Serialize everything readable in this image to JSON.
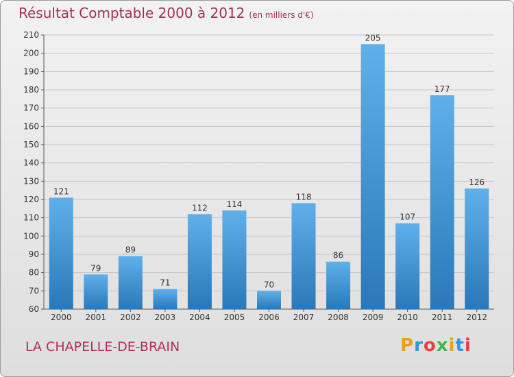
{
  "header": {
    "title": "Résultat Comptable 2000 à 2012",
    "unit": "(en milliers d'€)"
  },
  "footer": {
    "commune": "LA CHAPELLE-DE-BRAIN"
  },
  "logo": {
    "letters": [
      "P",
      "r",
      "o",
      "x",
      "i",
      "t",
      "i"
    ],
    "colors": [
      "#e8a020",
      "#2a9ad8",
      "#e84040",
      "#3cb84a",
      "#e8a020",
      "#2a9ad8",
      "#e84040"
    ]
  },
  "colors": {
    "bar": "#3d93d0",
    "title": "#a0305a"
  },
  "chart_data": {
    "type": "bar",
    "categories": [
      "2000",
      "2001",
      "2002",
      "2003",
      "2004",
      "2005",
      "2006",
      "2007",
      "2008",
      "2009",
      "2010",
      "2011",
      "2012"
    ],
    "values": [
      121,
      79,
      89,
      71,
      112,
      114,
      70,
      118,
      86,
      205,
      107,
      177,
      126
    ],
    "ylim": [
      60,
      210
    ],
    "yticks": [
      60,
      70,
      80,
      90,
      100,
      110,
      120,
      130,
      140,
      150,
      160,
      170,
      180,
      190,
      200,
      210
    ],
    "grid": true
  }
}
